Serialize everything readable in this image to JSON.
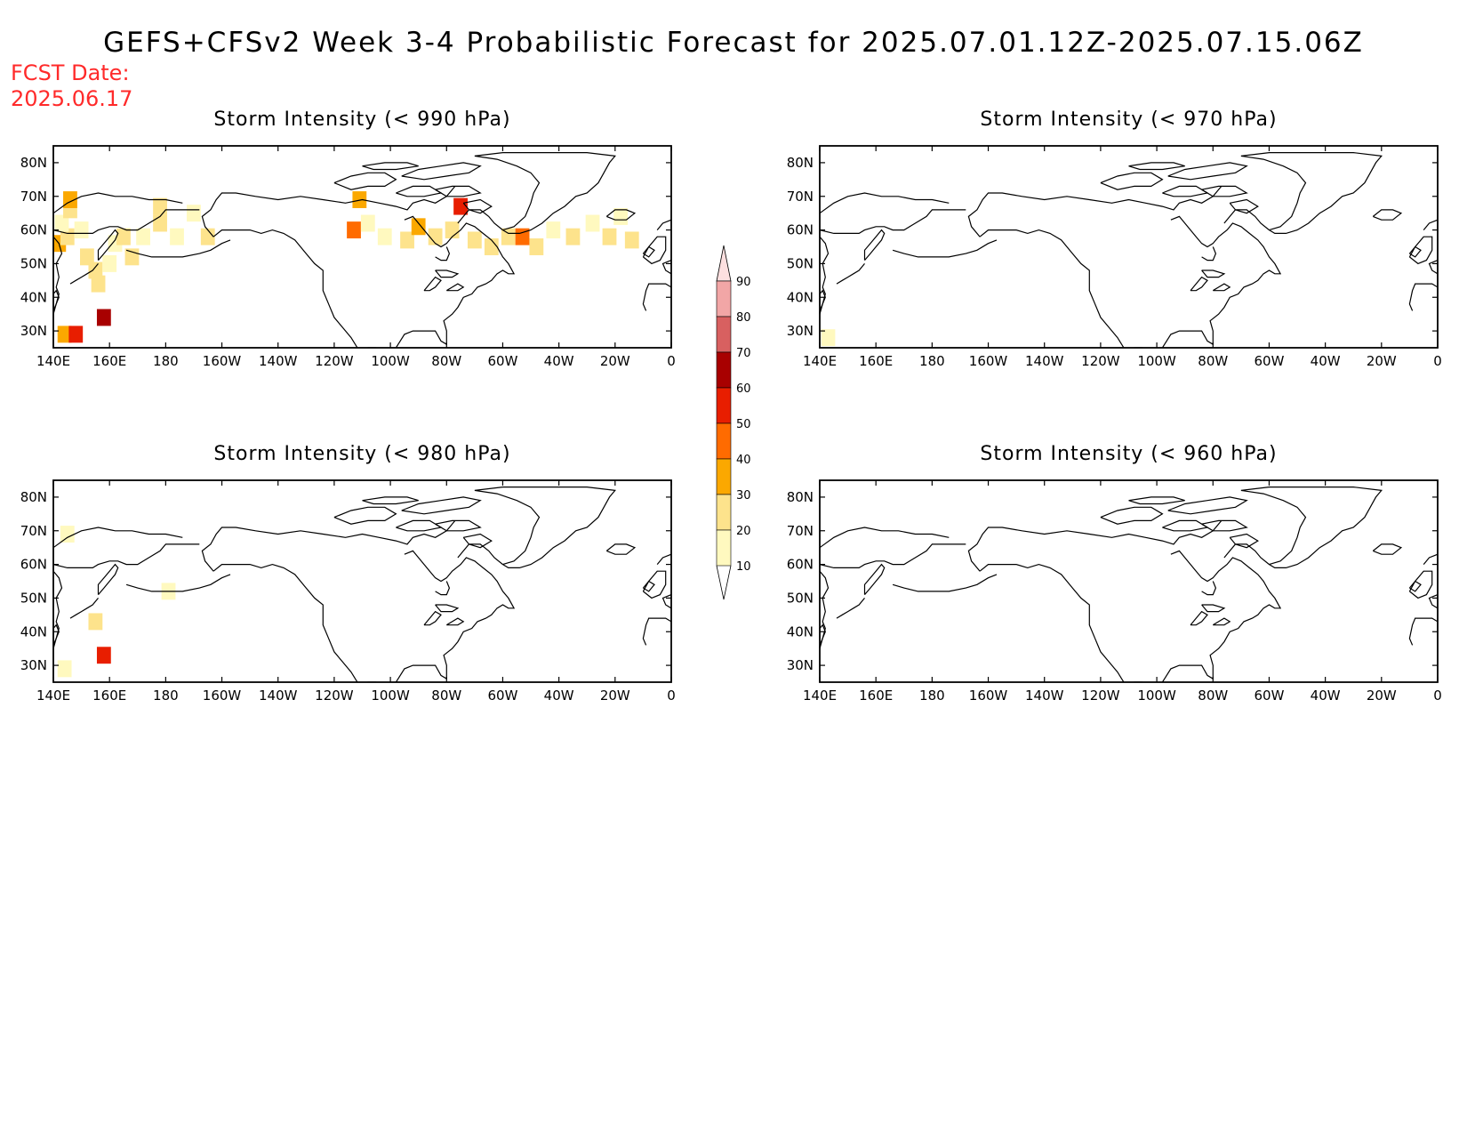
{
  "title": "GEFS+CFSv2 Week 3-4 Probabilistic Forecast for 2025.07.01.12Z-2025.07.15.06Z",
  "fcst_date_label": "FCST Date:",
  "fcst_date": "2025.06.17",
  "colors": {
    "coast": "#000000",
    "title_red": "#ff2a2a",
    "palette": [
      "#fff9bf",
      "#fde38c",
      "#fba800",
      "#ff6b00",
      "#e81e00",
      "#a80000",
      "#d86060",
      "#f2a6a6",
      "#fde0e0"
    ]
  },
  "map": {
    "lon_ticks": [
      "140E",
      "160E",
      "180",
      "160W",
      "140W",
      "120W",
      "100W",
      "80W",
      "60W",
      "40W",
      "20W",
      "0"
    ],
    "lat_ticks": [
      "30N",
      "40N",
      "50N",
      "60N",
      "70N",
      "80N"
    ],
    "lon_range": [
      140,
      360
    ],
    "lat_range": [
      25,
      85
    ]
  },
  "legend": {
    "levels": [
      "10",
      "20",
      "30",
      "40",
      "50",
      "60",
      "70",
      "80",
      "90"
    ]
  },
  "panels": [
    {
      "title": "Storm Intensity (< 990 hPa)",
      "cells": [
        {
          "lon": 142,
          "lat": 56,
          "p": 0.35
        },
        {
          "lon": 145,
          "lat": 58,
          "p": 0.2
        },
        {
          "lon": 143,
          "lat": 62,
          "p": 0.15
        },
        {
          "lon": 146,
          "lat": 66,
          "p": 0.2
        },
        {
          "lon": 146,
          "lat": 69,
          "p": 0.3
        },
        {
          "lon": 150,
          "lat": 60,
          "p": 0.15
        },
        {
          "lon": 152,
          "lat": 52,
          "p": 0.2
        },
        {
          "lon": 155,
          "lat": 48,
          "p": 0.25
        },
        {
          "lon": 156,
          "lat": 44,
          "p": 0.2
        },
        {
          "lon": 160,
          "lat": 50,
          "p": 0.15
        },
        {
          "lon": 162,
          "lat": 56,
          "p": 0.15
        },
        {
          "lon": 165,
          "lat": 58,
          "p": 0.2
        },
        {
          "lon": 168,
          "lat": 52,
          "p": 0.25
        },
        {
          "lon": 172,
          "lat": 58,
          "p": 0.15
        },
        {
          "lon": 178,
          "lat": 62,
          "p": 0.2
        },
        {
          "lon": 178,
          "lat": 67,
          "p": 0.2
        },
        {
          "lon": 184,
          "lat": 58,
          "p": 0.15
        },
        {
          "lon": 190,
          "lat": 65,
          "p": 0.15
        },
        {
          "lon": 195,
          "lat": 58,
          "p": 0.2
        },
        {
          "lon": 158,
          "lat": 34,
          "p": 0.65
        },
        {
          "lon": 144,
          "lat": 29,
          "p": 0.3
        },
        {
          "lon": 148,
          "lat": 29,
          "p": 0.55
        },
        {
          "lon": 249,
          "lat": 69,
          "p": 0.3
        },
        {
          "lon": 247,
          "lat": 60,
          "p": 0.45
        },
        {
          "lon": 252,
          "lat": 62,
          "p": 0.15
        },
        {
          "lon": 258,
          "lat": 58,
          "p": 0.15
        },
        {
          "lon": 266,
          "lat": 57,
          "p": 0.2
        },
        {
          "lon": 270,
          "lat": 61,
          "p": 0.35
        },
        {
          "lon": 276,
          "lat": 58,
          "p": 0.2
        },
        {
          "lon": 282,
          "lat": 60,
          "p": 0.2
        },
        {
          "lon": 285,
          "lat": 67,
          "p": 0.55
        },
        {
          "lon": 290,
          "lat": 57,
          "p": 0.2
        },
        {
          "lon": 296,
          "lat": 55,
          "p": 0.25
        },
        {
          "lon": 302,
          "lat": 58,
          "p": 0.2
        },
        {
          "lon": 307,
          "lat": 58,
          "p": 0.45
        },
        {
          "lon": 312,
          "lat": 55,
          "p": 0.2
        },
        {
          "lon": 318,
          "lat": 60,
          "p": 0.15
        },
        {
          "lon": 325,
          "lat": 58,
          "p": 0.25
        },
        {
          "lon": 332,
          "lat": 62,
          "p": 0.15
        },
        {
          "lon": 338,
          "lat": 58,
          "p": 0.2
        },
        {
          "lon": 342,
          "lat": 64,
          "p": 0.15
        },
        {
          "lon": 346,
          "lat": 57,
          "p": 0.25
        }
      ]
    },
    {
      "title": "Storm Intensity (< 970 hPa)",
      "cells": [
        {
          "lon": 143,
          "lat": 28,
          "p": 0.12
        }
      ]
    },
    {
      "title": "Storm Intensity (< 980 hPa)",
      "cells": [
        {
          "lon": 144,
          "lat": 29,
          "p": 0.15
        },
        {
          "lon": 155,
          "lat": 43,
          "p": 0.2
        },
        {
          "lon": 158,
          "lat": 33,
          "p": 0.5
        },
        {
          "lon": 181,
          "lat": 52,
          "p": 0.15
        },
        {
          "lon": 145,
          "lat": 69,
          "p": 0.12
        }
      ]
    },
    {
      "title": "Storm Intensity (< 960 hPa)",
      "cells": []
    }
  ]
}
